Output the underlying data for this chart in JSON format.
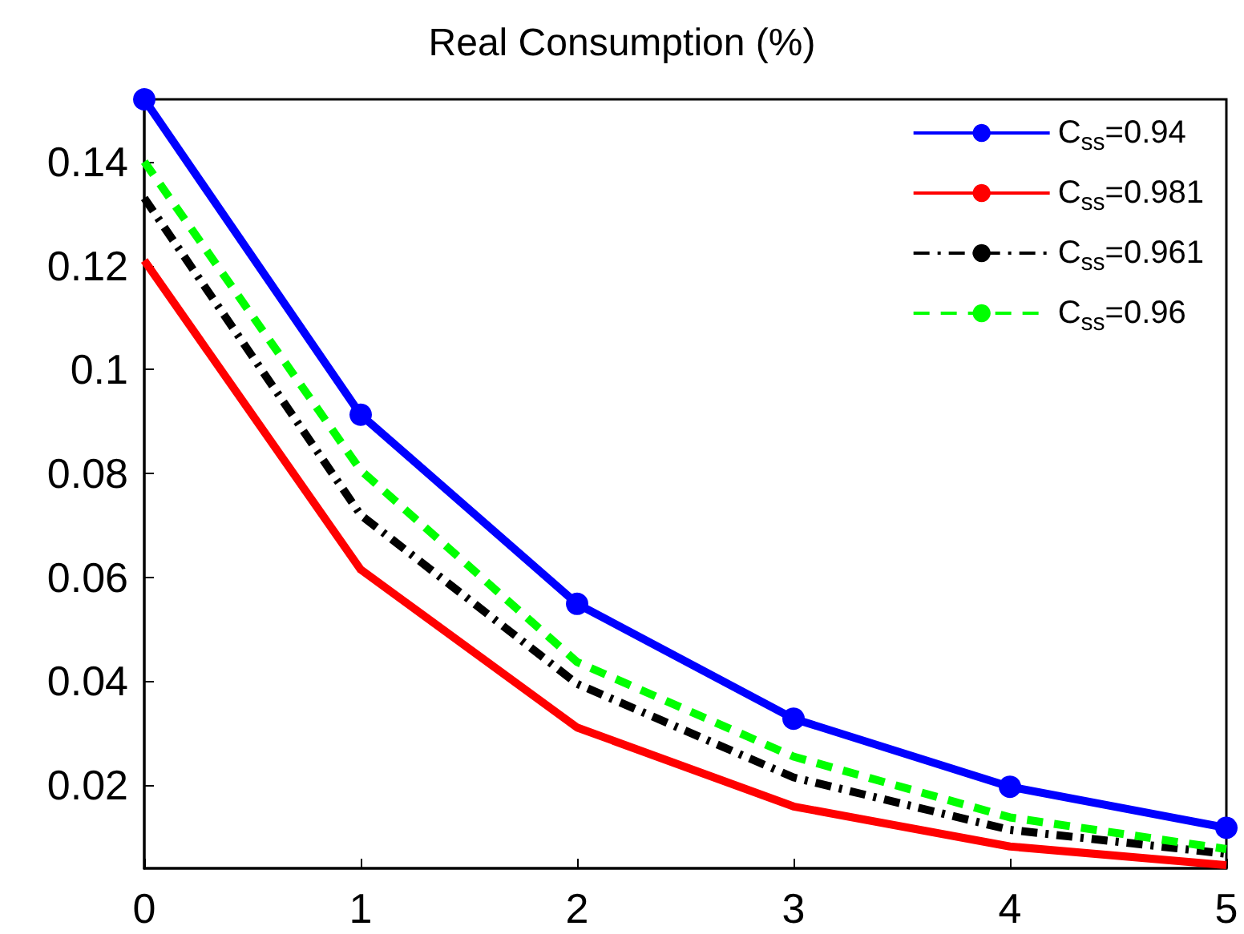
{
  "chart_data": {
    "type": "line",
    "title": "Real Consumption (%)",
    "x": [
      0,
      1,
      2,
      3,
      4,
      5
    ],
    "series": [
      {
        "name": "C$_{ss}$=0.94",
        "color": "#0000ff",
        "marker": "circle",
        "line_style": "solid",
        "values": [
          0.152,
          0.0913,
          0.0549,
          0.0328,
          0.0197,
          0.0118
        ]
      },
      {
        "name": "C$_{ss}$=0.981",
        "color": "#ff0000",
        "marker": "none",
        "line_style": "solid",
        "values": [
          0.121,
          0.0615,
          0.0311,
          0.0159,
          0.0082,
          0.0046
        ]
      },
      {
        "name": "C$_{ss}$=0.961",
        "color": "#000000",
        "marker": "none",
        "line_style": "dashdot",
        "values": [
          0.133,
          0.072,
          0.0395,
          0.0215,
          0.0114,
          0.0068
        ]
      },
      {
        "name": "C$_{ss}$=0.96",
        "color": "#00ff00",
        "marker": "none",
        "line_style": "dashed",
        "values": [
          0.14,
          0.0806,
          0.0437,
          0.0255,
          0.0138,
          0.0077
        ]
      }
    ],
    "xlim": [
      0,
      5
    ],
    "xticks": [
      0,
      1,
      2,
      3,
      4,
      5
    ],
    "ylim": [
      0.004,
      0.152
    ],
    "yticks": [
      0.02,
      0.04,
      0.06,
      0.08,
      0.1,
      0.12,
      0.14
    ],
    "grid": false,
    "legend": "top right"
  }
}
